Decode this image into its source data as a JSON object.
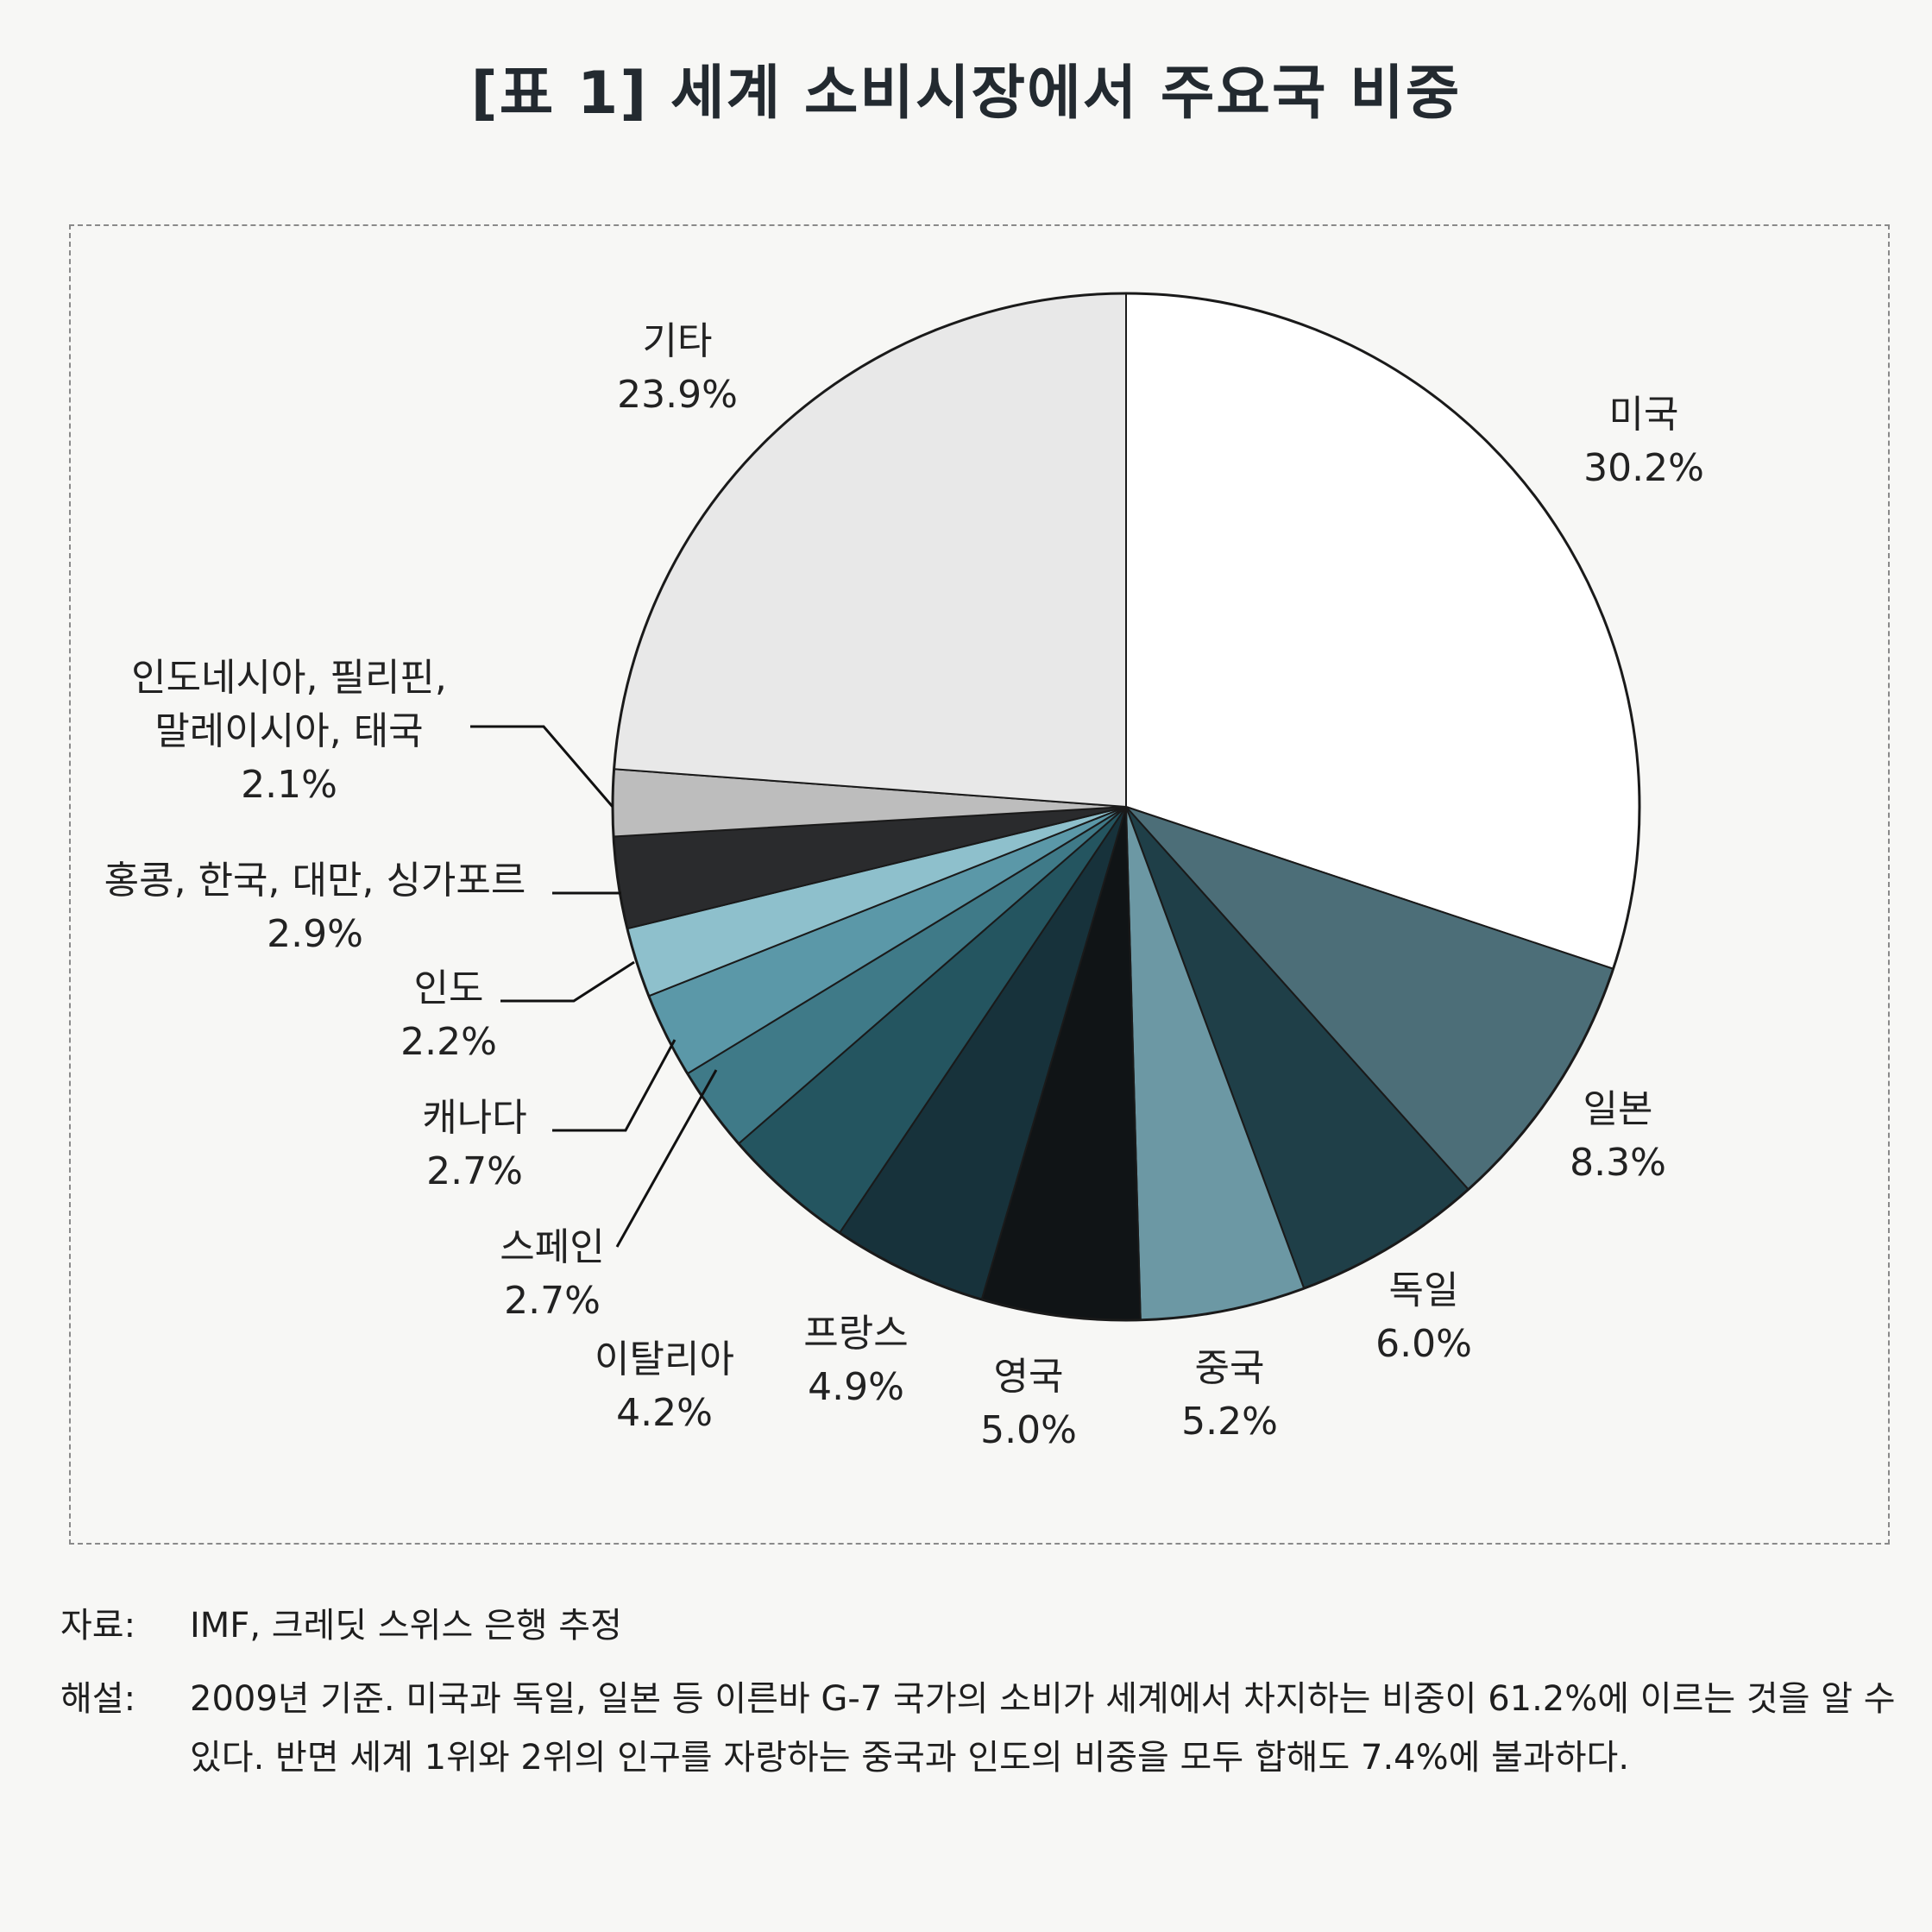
{
  "chart_data": {
    "type": "pie",
    "title": "[표 1] 세계 소비시장에서 주요국 비중",
    "slices": [
      {
        "name": "미국",
        "value": 30.2,
        "label": "30.2%",
        "color": "#ffffff"
      },
      {
        "name": "일본",
        "value": 8.3,
        "label": "8.3%",
        "color": "#4c6e78"
      },
      {
        "name": "독일",
        "value": 6.0,
        "label": "6.0%",
        "color": "#1f3f48"
      },
      {
        "name": "중국",
        "value": 5.2,
        "label": "5.2%",
        "color": "#6c98a4"
      },
      {
        "name": "영국",
        "value": 5.0,
        "label": "5.0%",
        "color": "#101416"
      },
      {
        "name": "프랑스",
        "value": 4.9,
        "label": "4.9%",
        "color": "#17323b"
      },
      {
        "name": "이탈리아",
        "value": 4.2,
        "label": "4.2%",
        "color": "#245560"
      },
      {
        "name": "스페인",
        "value": 2.7,
        "label": "2.7%",
        "color": "#3f7a88"
      },
      {
        "name": "캐나다",
        "value": 2.7,
        "label": "2.7%",
        "color": "#5b98a8"
      },
      {
        "name": "인도",
        "value": 2.2,
        "label": "2.2%",
        "color": "#8ec0cc"
      },
      {
        "name": "홍콩, 한국, 대만, 싱가포르",
        "value": 2.9,
        "label": "2.9%",
        "color": "#2a2b2d"
      },
      {
        "name": "인도네시아, 필리핀, 말레이시아, 태국",
        "value": 2.1,
        "label": "2.1%",
        "color": "#bdbdbd"
      },
      {
        "name": "기타",
        "value": 23.9,
        "label": "23.9%",
        "color": "#e8e8e8"
      }
    ]
  },
  "notes": [
    {
      "label": "자료:",
      "text": "IMF, 크레딧 스위스 은행 추정"
    },
    {
      "label": "해설:",
      "text": "2009년 기준. 미국과 독일, 일본 등 이른바 G-7 국가의 소비가 세계에서 차지하는 비중이 61.2%에 이르는 것을 알 수 있다. 반면 세계 1위와 2위의 인구를 자랑하는 중국과 인도의 비중을 모두 합해도 7.4%에 불과하다."
    }
  ]
}
